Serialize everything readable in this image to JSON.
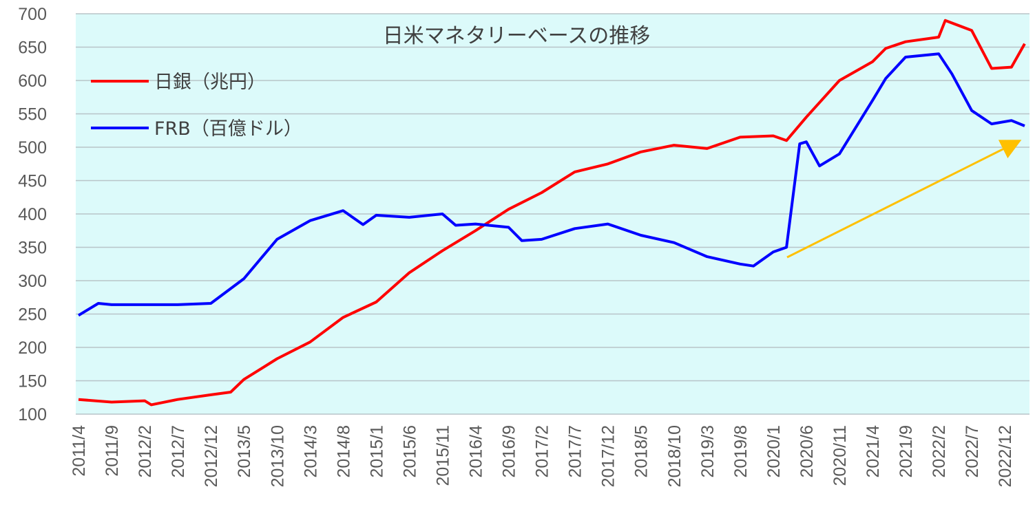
{
  "chart_data": {
    "type": "line",
    "title": "日米マネタリーベースの推移",
    "xlabel": "",
    "ylabel": "",
    "ylim": [
      100,
      700
    ],
    "ytick_step": 50,
    "grid": true,
    "legend_position": "top-left",
    "annotation": "arrow",
    "x_tick_labels": [
      "2011/4",
      "2011/9",
      "2012/2",
      "2012/7",
      "2012/12",
      "2013/5",
      "2013/10",
      "2014/3",
      "2014/8",
      "2015/1",
      "2015/6",
      "2015/11",
      "2016/4",
      "2016/9",
      "2017/2",
      "2017/7",
      "2017/12",
      "2018/5",
      "2018/10",
      "2019/3",
      "2019/8",
      "2020/1",
      "2020/6",
      "2020/11",
      "2021/4",
      "2021/9",
      "2022/2",
      "2022/7",
      "2022/12"
    ],
    "x_start": "2011/4",
    "x_end": "2023/3",
    "series": [
      {
        "name": "日銀（兆円）",
        "color": "#ff0000",
        "points": [
          [
            "2011/4",
            122
          ],
          [
            "2011/9",
            118
          ],
          [
            "2012/2",
            120
          ],
          [
            "2012/3",
            114
          ],
          [
            "2012/7",
            122
          ],
          [
            "2012/12",
            129
          ],
          [
            "2013/3",
            133
          ],
          [
            "2013/5",
            152
          ],
          [
            "2013/10",
            183
          ],
          [
            "2014/3",
            208
          ],
          [
            "2014/8",
            245
          ],
          [
            "2015/1",
            268
          ],
          [
            "2015/6",
            312
          ],
          [
            "2015/11",
            345
          ],
          [
            "2016/4",
            375
          ],
          [
            "2016/9",
            407
          ],
          [
            "2017/2",
            432
          ],
          [
            "2017/7",
            463
          ],
          [
            "2017/12",
            475
          ],
          [
            "2018/5",
            493
          ],
          [
            "2018/10",
            503
          ],
          [
            "2019/3",
            498
          ],
          [
            "2019/8",
            515
          ],
          [
            "2020/1",
            517
          ],
          [
            "2020/3",
            510
          ],
          [
            "2020/6",
            545
          ],
          [
            "2020/11",
            600
          ],
          [
            "2021/4",
            628
          ],
          [
            "2021/6",
            648
          ],
          [
            "2021/9",
            658
          ],
          [
            "2022/2",
            665
          ],
          [
            "2022/3",
            690
          ],
          [
            "2022/7",
            675
          ],
          [
            "2022/10",
            618
          ],
          [
            "2023/1",
            620
          ],
          [
            "2023/3",
            655
          ]
        ]
      },
      {
        "name": "FRB（百億ドル）",
        "color": "#0000ff",
        "points": [
          [
            "2011/4",
            248
          ],
          [
            "2011/7",
            266
          ],
          [
            "2011/9",
            264
          ],
          [
            "2012/2",
            264
          ],
          [
            "2012/7",
            264
          ],
          [
            "2012/12",
            266
          ],
          [
            "2013/5",
            303
          ],
          [
            "2013/10",
            362
          ],
          [
            "2014/3",
            390
          ],
          [
            "2014/8",
            405
          ],
          [
            "2014/11",
            384
          ],
          [
            "2015/1",
            398
          ],
          [
            "2015/6",
            395
          ],
          [
            "2015/11",
            400
          ],
          [
            "2016/1",
            383
          ],
          [
            "2016/4",
            385
          ],
          [
            "2016/9",
            380
          ],
          [
            "2016/11",
            360
          ],
          [
            "2017/2",
            362
          ],
          [
            "2017/7",
            378
          ],
          [
            "2017/12",
            385
          ],
          [
            "2018/5",
            368
          ],
          [
            "2018/10",
            357
          ],
          [
            "2019/3",
            336
          ],
          [
            "2019/8",
            325
          ],
          [
            "2019/10",
            322
          ],
          [
            "2020/1",
            343
          ],
          [
            "2020/3",
            350
          ],
          [
            "2020/5",
            505
          ],
          [
            "2020/6",
            508
          ],
          [
            "2020/8",
            472
          ],
          [
            "2020/11",
            490
          ],
          [
            "2021/4",
            570
          ],
          [
            "2021/6",
            603
          ],
          [
            "2021/9",
            635
          ],
          [
            "2022/2",
            640
          ],
          [
            "2022/4",
            610
          ],
          [
            "2022/7",
            555
          ],
          [
            "2022/10",
            535
          ],
          [
            "2023/1",
            540
          ],
          [
            "2023/3",
            532
          ]
        ]
      }
    ]
  }
}
